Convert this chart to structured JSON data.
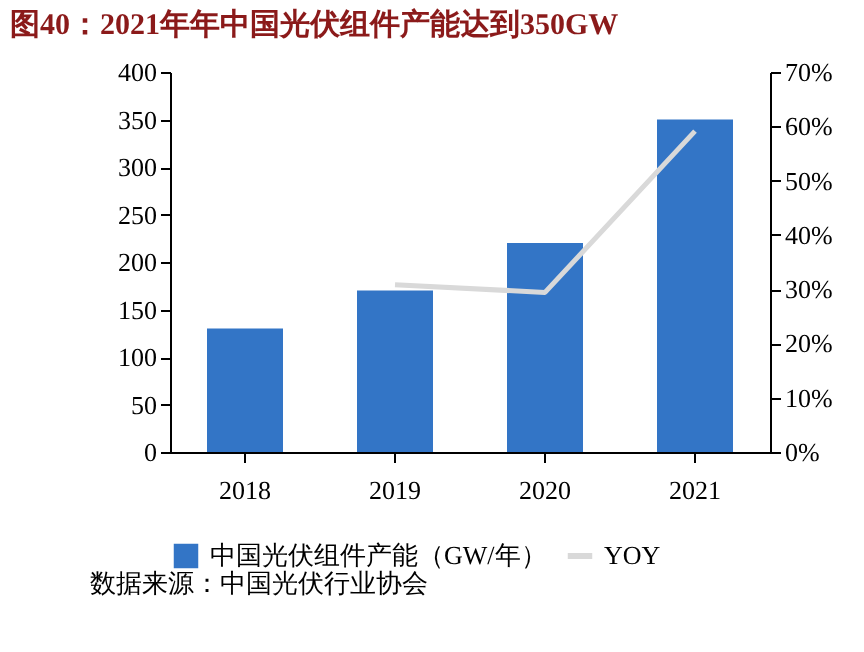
{
  "chart_data": {
    "type": "bar",
    "title": "图40：2021年年中国光伏组件产能达到350GW",
    "categories": [
      "2018",
      "2019",
      "2020",
      "2021"
    ],
    "series": [
      {
        "name": "中国光伏组件产能（GW/年）",
        "color": "#3375c6",
        "values": [
          130,
          170,
          220,
          350
        ]
      },
      {
        "name": "YOY",
        "type": "line",
        "axis": "y2",
        "color": "#d9d9d9",
        "values": [
          null,
          30.8,
          29.4,
          59.1
        ]
      }
    ],
    "ylim": [
      0,
      400
    ],
    "yticks": [
      0,
      50,
      100,
      150,
      200,
      250,
      300,
      350,
      400
    ],
    "y2lim": [
      0,
      70
    ],
    "y2ticks": [
      {
        "value": 0,
        "label": "0%"
      },
      {
        "value": 10,
        "label": "10%"
      },
      {
        "value": 20,
        "label": "20%"
      },
      {
        "value": 30,
        "label": "30%"
      },
      {
        "value": 40,
        "label": "40%"
      },
      {
        "value": 50,
        "label": "50%"
      },
      {
        "value": 60,
        "label": "60%"
      },
      {
        "value": 70,
        "label": "70%"
      }
    ],
    "grid": false,
    "legend": "bottom",
    "marker": "none",
    "annotations": [
      "数据来源：中国光伏行业协会"
    ]
  }
}
